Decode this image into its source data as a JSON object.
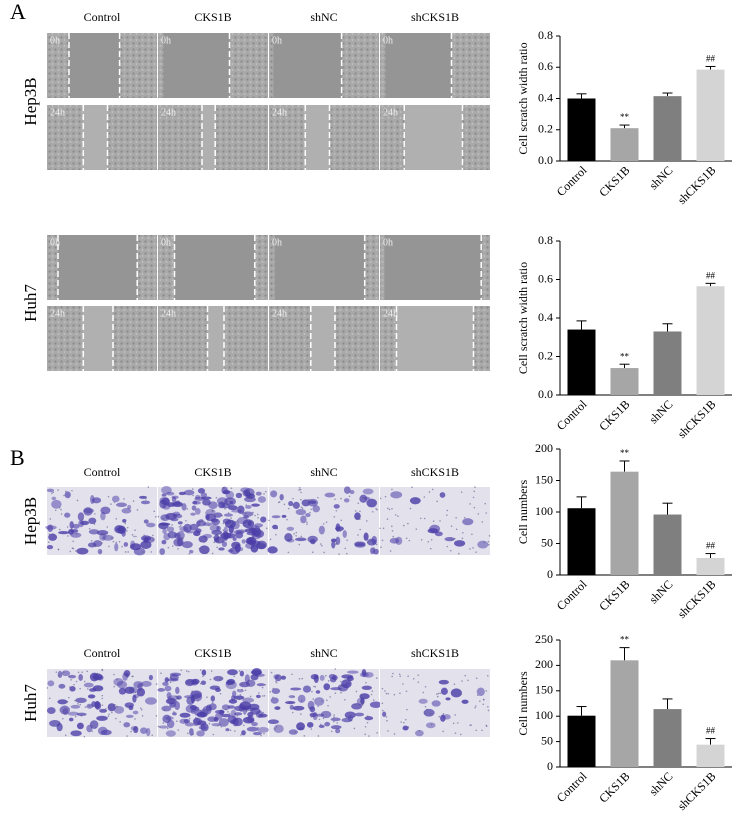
{
  "figure": {
    "panel_a": {
      "label": "A",
      "columns": [
        "Control",
        "CKS1B",
        "shNC",
        "shCKS1B"
      ],
      "rows": [
        "Hep3B",
        "Huh7"
      ],
      "times": [
        "0h",
        "24h"
      ]
    },
    "panel_b": {
      "label": "B",
      "columns": [
        "Control",
        "CKS1B",
        "shNC",
        "shCKS1B"
      ],
      "rows": [
        "Hep3B",
        "Huh7"
      ]
    }
  },
  "chart_data": [
    {
      "type": "bar",
      "ylabel": "Cell scratch width ratio",
      "categories": [
        "Control",
        "CKS1B",
        "shNC",
        "shCKS1B"
      ],
      "values": [
        0.4,
        0.21,
        0.415,
        0.585
      ],
      "errors": [
        0.03,
        0.02,
        0.02,
        0.02
      ],
      "annotations": [
        null,
        "**",
        null,
        "##"
      ],
      "colors": [
        "#000000",
        "#a6a6a6",
        "#7f7f7f",
        "#d4d4d4"
      ],
      "ylim": [
        0,
        0.8
      ],
      "yticks": [
        {
          "value": 0,
          "label": "0.0"
        },
        0.2,
        0.4,
        0.6,
        0.8
      ]
    },
    {
      "type": "bar",
      "ylabel": "Cell scratch width ratio",
      "categories": [
        "Control",
        "CKS1B",
        "shNC",
        "shCKS1B"
      ],
      "values": [
        0.34,
        0.14,
        0.33,
        0.565
      ],
      "errors": [
        0.045,
        0.02,
        0.04,
        0.015
      ],
      "annotations": [
        null,
        "**",
        null,
        "##"
      ],
      "colors": [
        "#000000",
        "#a6a6a6",
        "#7f7f7f",
        "#d4d4d4"
      ],
      "ylim": [
        0,
        0.8
      ],
      "yticks": [
        {
          "value": 0,
          "label": "0.0"
        },
        0.2,
        0.4,
        0.6,
        0.8
      ]
    },
    {
      "type": "bar",
      "ylabel": "Cell numbers",
      "categories": [
        "Control",
        "CKS1B",
        "shNC",
        "shCKS1B"
      ],
      "values": [
        106,
        164,
        96,
        27
      ],
      "errors": [
        18,
        17,
        18,
        7
      ],
      "annotations": [
        null,
        "**",
        null,
        "##"
      ],
      "colors": [
        "#000000",
        "#a6a6a6",
        "#7f7f7f",
        "#d4d4d4"
      ],
      "ylim": [
        0,
        200
      ],
      "yticks": [
        0,
        50,
        100,
        150,
        200
      ]
    },
    {
      "type": "bar",
      "ylabel": "Cell numbers",
      "categories": [
        "Control",
        "CKS1B",
        "shNC",
        "shCKS1B"
      ],
      "values": [
        101,
        210,
        114,
        44
      ],
      "errors": [
        18,
        25,
        20,
        12
      ],
      "annotations": [
        null,
        "**",
        null,
        "##"
      ],
      "colors": [
        "#000000",
        "#a6a6a6",
        "#7f7f7f",
        "#d4d4d4"
      ],
      "ylim": [
        0,
        250
      ],
      "yticks": [
        0,
        50,
        100,
        150,
        200,
        250
      ]
    }
  ]
}
